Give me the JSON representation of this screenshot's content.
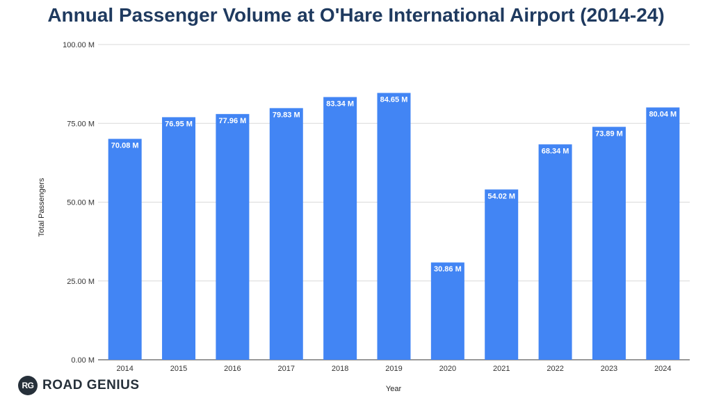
{
  "chart_data": {
    "type": "bar",
    "title": "Annual Passenger Volume at O'Hare International Airport (2014-24)",
    "xlabel": "Year",
    "ylabel": "Total Passengers",
    "categories": [
      "2014",
      "2015",
      "2016",
      "2017",
      "2018",
      "2019",
      "2020",
      "2021",
      "2022",
      "2023",
      "2024"
    ],
    "values": [
      70.08,
      76.95,
      77.96,
      79.83,
      83.34,
      84.65,
      30.86,
      54.02,
      68.34,
      73.89,
      80.04
    ],
    "data_labels": [
      "70.08 M",
      "76.95 M",
      "77.96 M",
      "79.83 M",
      "83.34 M",
      "84.65 M",
      "30.86 M",
      "54.02 M",
      "68.34 M",
      "73.89 M",
      "80.04 M"
    ],
    "ylim": [
      0,
      100
    ],
    "yticks": [
      0,
      25,
      50,
      75,
      100
    ],
    "ytick_labels": [
      "0.00 M",
      "25.00 M",
      "50.00 M",
      "75.00 M",
      "100.00 M"
    ],
    "grid": true,
    "legend": "none",
    "bar_color": "#4285f4"
  },
  "brand": {
    "badge": "RG",
    "name": "ROAD GENIUS"
  }
}
